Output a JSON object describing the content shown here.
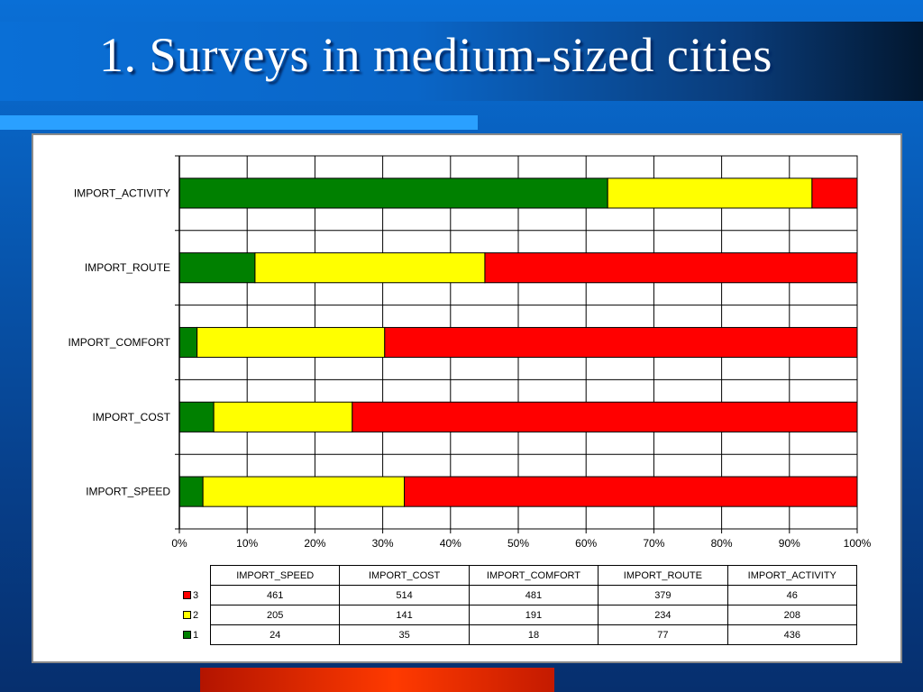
{
  "slide": {
    "title": "1. Surveys in medium-sized cities"
  },
  "chart_data": {
    "type": "bar",
    "orientation": "horizontal",
    "stacked": "percent",
    "categories": [
      "IMPORT_ACTIVITY",
      "IMPORT_ROUTE",
      "IMPORT_COMFORT",
      "IMPORT_COST",
      "IMPORT_SPEED"
    ],
    "series": [
      {
        "name": "1",
        "color": "#008000",
        "values": [
          436,
          77,
          18,
          35,
          24
        ]
      },
      {
        "name": "2",
        "color": "#ffff00",
        "values": [
          208,
          234,
          191,
          141,
          205
        ]
      },
      {
        "name": "3",
        "color": "#ff0000",
        "values": [
          46,
          379,
          481,
          514,
          461
        ]
      }
    ],
    "xticks": [
      "0%",
      "10%",
      "20%",
      "30%",
      "40%",
      "50%",
      "60%",
      "70%",
      "80%",
      "90%",
      "100%"
    ],
    "xlim": [
      0,
      100
    ],
    "grid": true,
    "table": {
      "columns": [
        "IMPORT_SPEED",
        "IMPORT_COST",
        "IMPORT_COMFORT",
        "IMPORT_ROUTE",
        "IMPORT_ACTIVITY"
      ],
      "rows": [
        {
          "label": "3",
          "color": "#ff0000",
          "values": [
            "461",
            "514",
            "481",
            "379",
            "46"
          ]
        },
        {
          "label": "2",
          "color": "#ffff00",
          "values": [
            "205",
            "141",
            "191",
            "234",
            "208"
          ]
        },
        {
          "label": "1",
          "color": "#008000",
          "values": [
            "24",
            "35",
            "18",
            "77",
            "436"
          ]
        }
      ]
    }
  }
}
